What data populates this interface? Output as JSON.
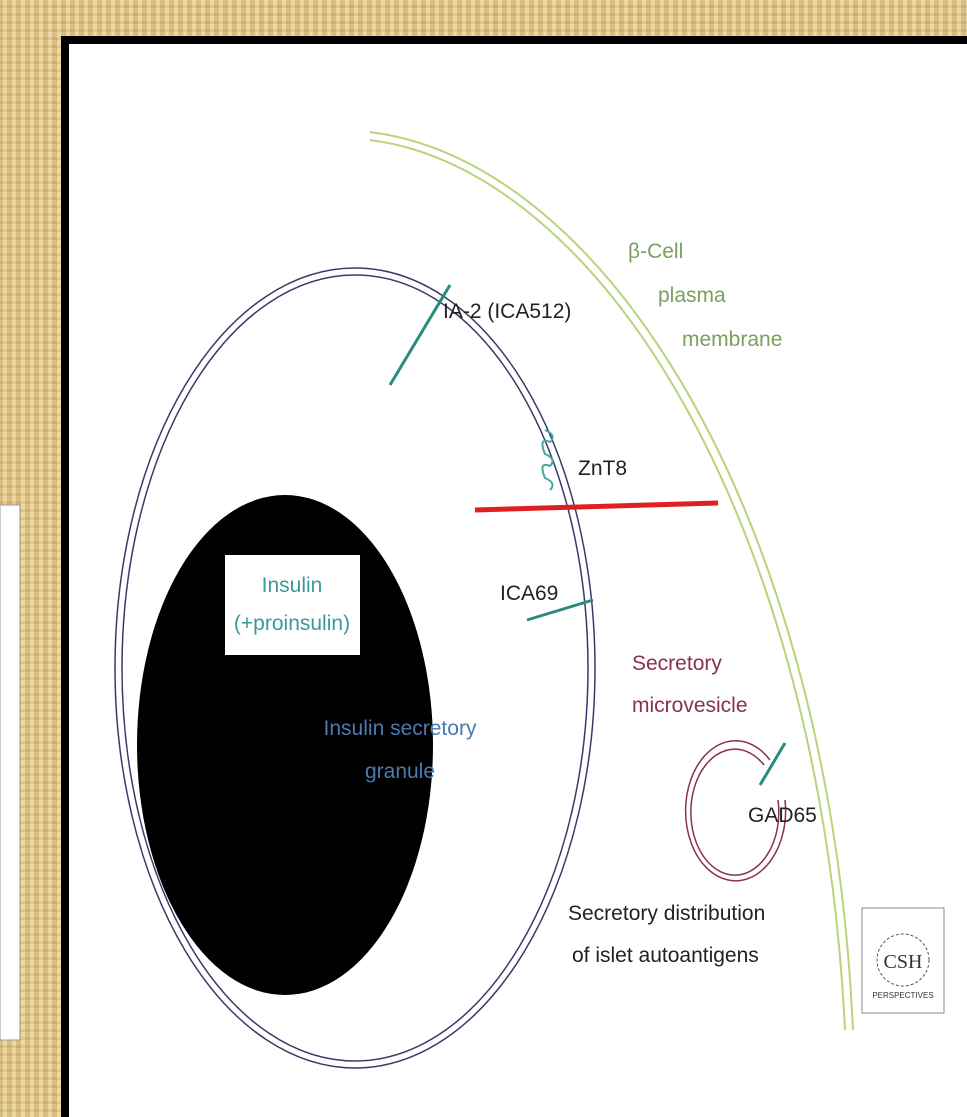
{
  "diagram": {
    "membrane_label": [
      "β-Cell",
      "plasma",
      "membrane"
    ],
    "proteins": [
      "IA-2 (ICA512)",
      "ZnT8",
      "ICA69",
      "GAD65"
    ],
    "insulin_box": [
      "Insulin",
      "(+proinsulin)"
    ],
    "granule_label": [
      "Insulin secretory",
      "granule"
    ],
    "microvesicle_label": [
      "Secretory",
      "microvesicle"
    ],
    "caption": [
      "Secretory distribution",
      "of islet autoantigens"
    ],
    "logo": [
      "CSH",
      "PERSPECTIVES"
    ]
  }
}
